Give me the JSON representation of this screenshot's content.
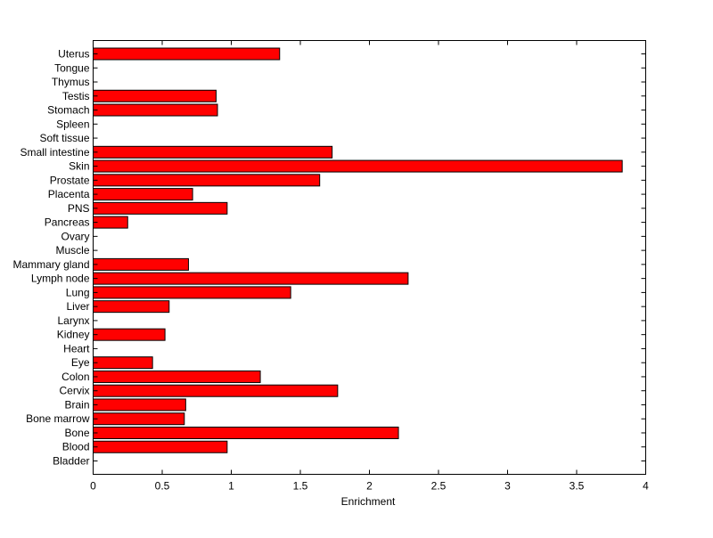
{
  "chart_data": {
    "type": "bar",
    "orientation": "horizontal",
    "title": "",
    "xlabel": "Enrichment",
    "ylabel": "",
    "xlim": [
      0,
      4
    ],
    "xticks": [
      "0",
      "0.5",
      "1",
      "1.5",
      "2",
      "2.5",
      "3",
      "3.5",
      "4"
    ],
    "grid": false,
    "bar_color": "#ff0000",
    "bar_edge_color": "#000000",
    "categories": [
      "Bladder",
      "Blood",
      "Bone",
      "Bone marrow",
      "Brain",
      "Cervix",
      "Colon",
      "Eye",
      "Heart",
      "Kidney",
      "Larynx",
      "Liver",
      "Lung",
      "Lymph node",
      "Mammary gland",
      "Muscle",
      "Ovary",
      "Pancreas",
      "PNS",
      "Placenta",
      "Prostate",
      "Skin",
      "Small intestine",
      "Soft tissue",
      "Spleen",
      "Stomach",
      "Testis",
      "Thymus",
      "Tongue",
      "Uterus"
    ],
    "values": [
      0,
      0.97,
      2.21,
      0.66,
      0.67,
      1.77,
      1.21,
      0.43,
      0,
      0.52,
      0,
      0.55,
      1.43,
      2.28,
      0.69,
      0,
      0,
      0.25,
      0.97,
      0.72,
      1.64,
      3.83,
      1.73,
      0,
      0,
      0.9,
      0.89,
      0,
      0,
      1.35
    ]
  }
}
